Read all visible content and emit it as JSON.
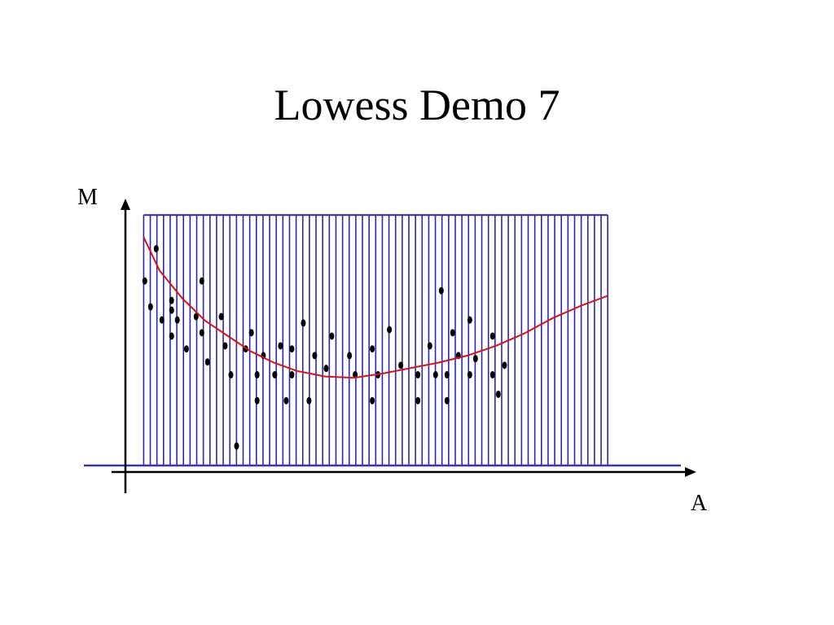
{
  "slide": {
    "title": "Lowess Demo 7"
  },
  "chart_data": {
    "type": "scatter",
    "title": "Lowess Demo 7",
    "xlabel": "A",
    "ylabel": "M",
    "xlim": [
      0,
      100
    ],
    "ylim": [
      0,
      100
    ],
    "grid": false,
    "legend": "none",
    "window_lines": {
      "count": 71,
      "x_start": 3.2,
      "x_end": 84.6,
      "top": 90
    },
    "points": [
      [
        3.4,
        66.3
      ],
      [
        4.4,
        57.0
      ],
      [
        5.4,
        77.9
      ],
      [
        6.4,
        52.3
      ],
      [
        8.1,
        59.3
      ],
      [
        8.1,
        55.8
      ],
      [
        8.1,
        46.5
      ],
      [
        9.1,
        52.3
      ],
      [
        10.7,
        41.9
      ],
      [
        12.4,
        53.5
      ],
      [
        13.4,
        47.7
      ],
      [
        13.4,
        66.3
      ],
      [
        14.4,
        37.2
      ],
      [
        16.8,
        53.5
      ],
      [
        17.5,
        43.0
      ],
      [
        18.5,
        32.6
      ],
      [
        19.5,
        7.0
      ],
      [
        21.1,
        41.9
      ],
      [
        22.1,
        47.7
      ],
      [
        23.1,
        32.6
      ],
      [
        23.1,
        23.3
      ],
      [
        24.2,
        39.5
      ],
      [
        26.2,
        32.6
      ],
      [
        27.2,
        43.0
      ],
      [
        28.2,
        23.3
      ],
      [
        29.2,
        32.6
      ],
      [
        29.2,
        41.9
      ],
      [
        31.2,
        51.2
      ],
      [
        32.2,
        23.3
      ],
      [
        33.2,
        39.5
      ],
      [
        35.2,
        34.9
      ],
      [
        36.2,
        46.5
      ],
      [
        39.3,
        39.5
      ],
      [
        40.3,
        32.6
      ],
      [
        43.3,
        41.9
      ],
      [
        43.3,
        23.3
      ],
      [
        44.3,
        32.6
      ],
      [
        46.3,
        48.8
      ],
      [
        48.3,
        36.0
      ],
      [
        51.3,
        32.6
      ],
      [
        51.3,
        23.3
      ],
      [
        53.4,
        43.0
      ],
      [
        54.4,
        32.6
      ],
      [
        55.4,
        62.8
      ],
      [
        56.4,
        23.3
      ],
      [
        56.4,
        32.6
      ],
      [
        57.4,
        47.7
      ],
      [
        58.4,
        39.5
      ],
      [
        60.4,
        32.6
      ],
      [
        60.4,
        52.3
      ],
      [
        61.4,
        38.4
      ],
      [
        64.4,
        46.5
      ],
      [
        64.4,
        32.6
      ],
      [
        65.4,
        25.6
      ],
      [
        66.5,
        36.0
      ]
    ],
    "lowess": [
      [
        3.2,
        82.0
      ],
      [
        6.0,
        70.0
      ],
      [
        10.0,
        60.0
      ],
      [
        14.0,
        52.0
      ],
      [
        18.0,
        46.5
      ],
      [
        22.0,
        41.0
      ],
      [
        26.0,
        37.0
      ],
      [
        30.0,
        34.0
      ],
      [
        35.0,
        32.0
      ],
      [
        40.0,
        31.5
      ],
      [
        45.0,
        33.0
      ],
      [
        50.0,
        35.0
      ],
      [
        55.0,
        37.0
      ],
      [
        60.0,
        39.5
      ],
      [
        65.0,
        43.0
      ],
      [
        70.0,
        47.5
      ],
      [
        75.0,
        53.0
      ],
      [
        80.0,
        57.5
      ],
      [
        84.6,
        61.0
      ]
    ],
    "colors": {
      "window_lines": "#2a2aa8",
      "baseline": "#3333bb",
      "lowess": "#dd1111",
      "points": "#000000",
      "axes": "#000000"
    }
  }
}
